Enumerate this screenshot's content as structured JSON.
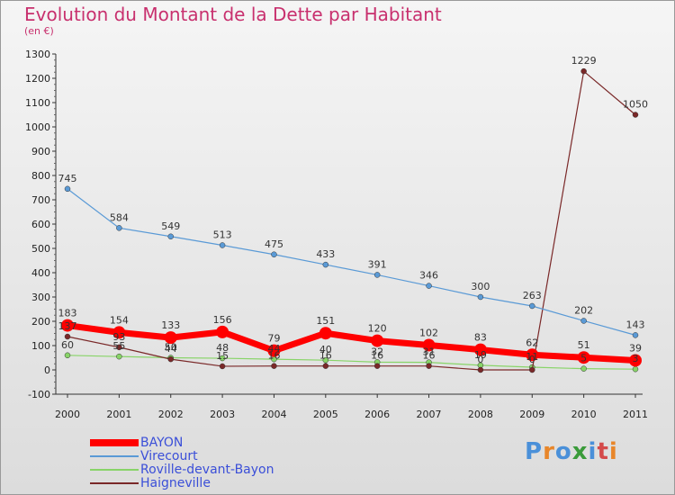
{
  "title": "Evolution du Montant de la Dette par Habitant",
  "subtitle": "(en €)",
  "logo": {
    "letters": [
      "P",
      "r",
      "o",
      "x",
      "i",
      "t",
      "i"
    ],
    "colors": [
      "#4a90d9",
      "#e8862a",
      "#4a90d9",
      "#3a9b3a",
      "#4a90d9",
      "#d44a4a",
      "#e8862a"
    ]
  },
  "chart_data": {
    "type": "line",
    "title": "Evolution du Montant de la Dette par Habitant",
    "subtitle": "(en €)",
    "x": [
      "2000",
      "2001",
      "2002",
      "2003",
      "2004",
      "2005",
      "2006",
      "2007",
      "2008",
      "2009",
      "2010",
      "2011"
    ],
    "ylim": [
      -100,
      1300
    ],
    "yticks": [
      "-100",
      "0",
      "100",
      "200",
      "300",
      "400",
      "500",
      "600",
      "700",
      "800",
      "900",
      "1000",
      "1100",
      "1200",
      "1300"
    ],
    "grid": false,
    "legend_position": "bottom-left",
    "series": [
      {
        "name": "BAYON",
        "color": "#ff0000",
        "values": [
          183,
          154,
          133,
          156,
          79,
          151,
          120,
          102,
          83,
          62,
          51,
          39
        ],
        "labels": [
          "183",
          "154",
          "133",
          "156",
          "79",
          "151",
          "120",
          "102",
          "83",
          "62",
          "51",
          "39"
        ]
      },
      {
        "name": "Virecourt",
        "color": "#5a9ad6",
        "values": [
          745,
          584,
          549,
          513,
          475,
          433,
          391,
          346,
          300,
          263,
          202,
          143
        ],
        "labels": [
          "745",
          "584",
          "549",
          "513",
          "475",
          "433",
          "391",
          "346",
          "300",
          "263",
          "202",
          "143"
        ]
      },
      {
        "name": "Roville-devant-Bayon",
        "color": "#88d468",
        "values": [
          60,
          55,
          50,
          48,
          44,
          40,
          32,
          31,
          19,
          11,
          5,
          3
        ],
        "labels": [
          "60",
          "55",
          "50",
          "48",
          "44",
          "40",
          "32",
          "31",
          "19",
          "11",
          "5",
          "3"
        ]
      },
      {
        "name": "Haigneville",
        "color": "#7a2828",
        "values": [
          137,
          93,
          44,
          15,
          16,
          16,
          16,
          16,
          0,
          0,
          1229,
          1050
        ],
        "labels": [
          "137",
          "93",
          "44",
          "15",
          "16",
          "16",
          "16",
          "16",
          "0",
          "0",
          "1229",
          "1050"
        ]
      }
    ]
  }
}
